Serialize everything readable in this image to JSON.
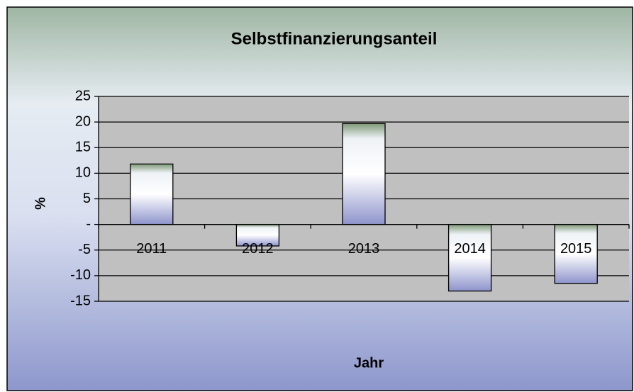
{
  "chart_data": {
    "type": "bar",
    "title": "Selbstfinanzierungsanteil",
    "x_label": "Jahr",
    "y_label": "%",
    "categories": [
      "2011",
      "2012",
      "2013",
      "2014",
      "2015"
    ],
    "values": [
      11.8,
      -4.2,
      19.7,
      -13,
      -11.5
    ],
    "ylim": [
      -15,
      25
    ],
    "yticks": [
      -15,
      -10,
      -5,
      {
        "value": 0,
        "label": "-"
      },
      5,
      10,
      15,
      20,
      25
    ],
    "grid": true
  }
}
